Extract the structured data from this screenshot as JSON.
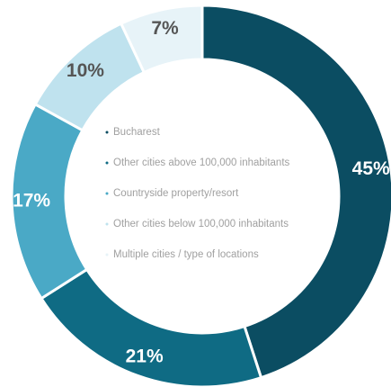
{
  "chart_data": {
    "type": "pie",
    "donut": true,
    "categories": [
      "Bucharest",
      "Other cities above 100,000 inhabitants",
      "Countryside property/resort",
      "Other cities below 100,000 inhabitants",
      "Multiple cities / type of locations"
    ],
    "values": [
      45,
      21,
      17,
      10,
      7
    ],
    "value_labels": [
      "45%",
      "21%",
      "17%",
      "10%",
      "7%"
    ],
    "colors": [
      "#0b4d62",
      "#0f6b84",
      "#4aa9c6",
      "#bfe2ee",
      "#e7f3f8"
    ]
  }
}
